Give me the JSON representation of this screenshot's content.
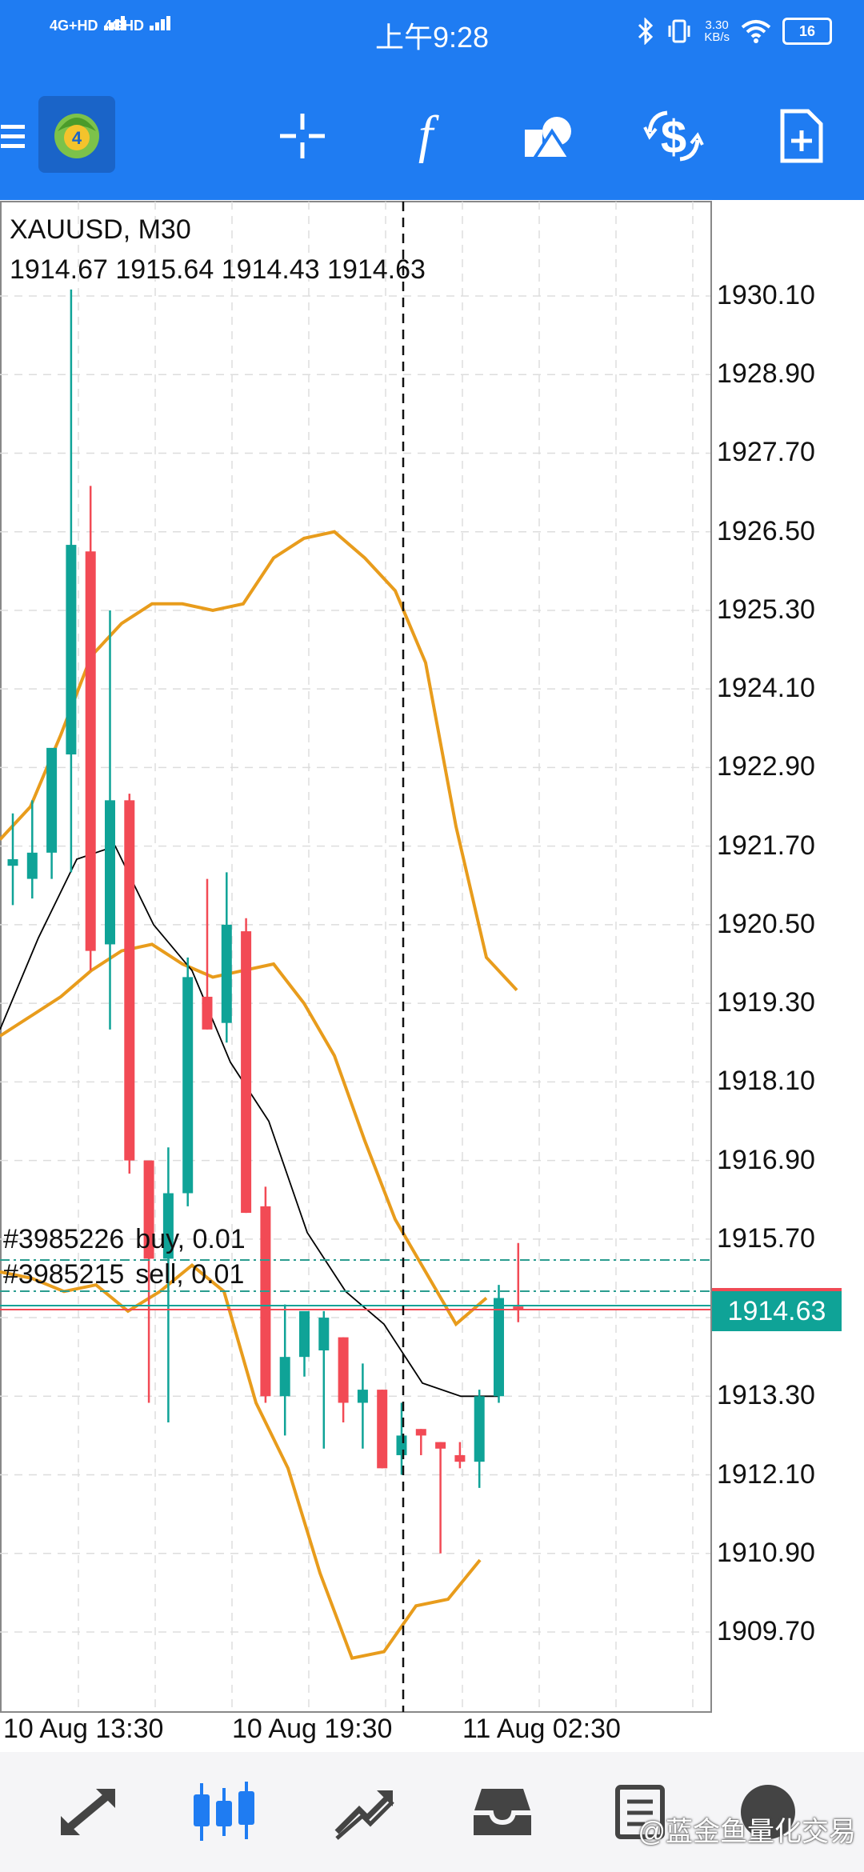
{
  "status_bar": {
    "signal1": "4G+HD",
    "signal2": "4GHD",
    "time": "上午9:28",
    "speed": "3.30",
    "speed_unit": "KB/s",
    "battery": "16"
  },
  "toolbar": {
    "icons": [
      "menu-icon",
      "metatrader-logo-icon",
      "crosshair-icon",
      "indicators-icon",
      "objects-icon",
      "trade-icon",
      "new-order-icon"
    ]
  },
  "chart": {
    "symbol": "XAUUSD, M30",
    "ohlc": "1914.67 1915.64 1914.43 1914.63",
    "current_price": "1914.63",
    "price_labels": [
      "1930.10",
      "1928.90",
      "1927.70",
      "1926.50",
      "1925.30",
      "1924.10",
      "1922.90",
      "1921.70",
      "1920.50",
      "1919.30",
      "1918.10",
      "1916.90",
      "1915.70",
      "1913.30",
      "1912.10",
      "1910.90",
      "1909.70"
    ],
    "time_labels": [
      "10 Aug 13:30",
      "10 Aug 19:30",
      "11 Aug 02:30"
    ],
    "orders": [
      "#3985226",
      "buy, 0.01",
      "#3985215",
      "sell, 0.01"
    ],
    "colors": {
      "bull": "#0fa397",
      "bear": "#f24a55",
      "band": "#e89c1c",
      "ma": "#000000",
      "grid": "#dddddd"
    }
  },
  "chart_data": {
    "type": "candlestick",
    "title": "XAUUSD, M30",
    "ylim": [
      1908.6,
      1931.0
    ],
    "candles": [
      {
        "o": 1921.4,
        "h": 1922.2,
        "l": 1920.8,
        "c": 1921.5
      },
      {
        "o": 1921.2,
        "h": 1922.4,
        "l": 1920.9,
        "c": 1921.6
      },
      {
        "o": 1921.6,
        "h": 1923.0,
        "l": 1921.2,
        "c": 1923.2
      },
      {
        "o": 1923.1,
        "h": 1930.2,
        "l": 1921.3,
        "c": 1926.3
      },
      {
        "o": 1926.2,
        "h": 1927.2,
        "l": 1919.8,
        "c": 1920.1
      },
      {
        "o": 1920.2,
        "h": 1925.3,
        "l": 1918.9,
        "c": 1922.4
      },
      {
        "o": 1922.4,
        "h": 1922.5,
        "l": 1916.7,
        "c": 1916.9
      },
      {
        "o": 1916.9,
        "h": 1916.7,
        "l": 1913.2,
        "c": 1915.4
      },
      {
        "o": 1915.4,
        "h": 1917.1,
        "l": 1912.9,
        "c": 1916.4
      },
      {
        "o": 1916.4,
        "h": 1920.0,
        "l": 1916.2,
        "c": 1919.7
      },
      {
        "o": 1919.4,
        "h": 1921.2,
        "l": 1918.9,
        "c": 1918.9
      },
      {
        "o": 1919.0,
        "h": 1921.3,
        "l": 1918.7,
        "c": 1920.5
      },
      {
        "o": 1920.4,
        "h": 1920.6,
        "l": 1916.1,
        "c": 1916.1
      },
      {
        "o": 1916.2,
        "h": 1916.5,
        "l": 1913.2,
        "c": 1913.3
      },
      {
        "o": 1913.3,
        "h": 1914.7,
        "l": 1912.7,
        "c": 1913.9
      },
      {
        "o": 1913.9,
        "h": 1914.5,
        "l": 1913.6,
        "c": 1914.6
      },
      {
        "o": 1914.0,
        "h": 1914.6,
        "l": 1912.5,
        "c": 1914.5
      },
      {
        "o": 1914.2,
        "h": 1914.2,
        "l": 1912.9,
        "c": 1913.2
      },
      {
        "o": 1913.2,
        "h": 1913.8,
        "l": 1912.5,
        "c": 1913.4
      },
      {
        "o": 1913.4,
        "h": 1913.4,
        "l": 1912.2,
        "c": 1912.2
      },
      {
        "o": 1912.4,
        "h": 1913.2,
        "l": 1912.1,
        "c": 1912.7
      },
      {
        "o": 1912.8,
        "h": 1912.8,
        "l": 1912.4,
        "c": 1912.7
      },
      {
        "o": 1912.6,
        "h": 1912.6,
        "l": 1910.9,
        "c": 1912.5
      },
      {
        "o": 1912.4,
        "h": 1912.6,
        "l": 1912.2,
        "c": 1912.3
      },
      {
        "o": 1912.3,
        "h": 1913.4,
        "l": 1911.9,
        "c": 1913.3
      },
      {
        "o": 1913.3,
        "h": 1915.0,
        "l": 1913.2,
        "c": 1914.8
      },
      {
        "o": 1914.67,
        "h": 1915.64,
        "l": 1914.43,
        "c": 1914.63
      }
    ],
    "upper_band": [
      1921.8,
      1922.3,
      1923.4,
      1924.6,
      1925.1,
      1925.4,
      1925.4,
      1925.3,
      1925.4,
      1926.1,
      1926.4,
      1926.5,
      1926.1,
      1925.6,
      1924.5,
      1922.0,
      1920.0,
      1919.5
    ],
    "middle_band": [
      1918.8,
      1919.1,
      1919.4,
      1919.8,
      1920.1,
      1920.2,
      1919.9,
      1919.7,
      1919.8,
      1919.9,
      1919.3,
      1918.5,
      1917.2,
      1916.0,
      1915.2,
      1914.4,
      1914.8
    ],
    "lower_band": [
      1915.2,
      1915.1,
      1914.9,
      1915.0,
      1914.6,
      1914.9,
      1915.3,
      1914.9,
      1913.2,
      1912.2,
      1910.6,
      1909.3,
      1909.4,
      1910.1,
      1910.2,
      1910.8
    ],
    "ma": [
      1918.9,
      1920.3,
      1921.5,
      1921.7,
      1920.5,
      1919.8,
      1918.4,
      1917.5,
      1915.8,
      1914.9,
      1914.4,
      1913.5,
      1913.3,
      1913.3
    ]
  },
  "bottom_nav": {
    "items": [
      "quotes-icon",
      "chart-icon",
      "trade-icon",
      "history-icon",
      "messages-icon",
      "settings-icon"
    ]
  },
  "watermark": "@蓝金鱼量化交易"
}
